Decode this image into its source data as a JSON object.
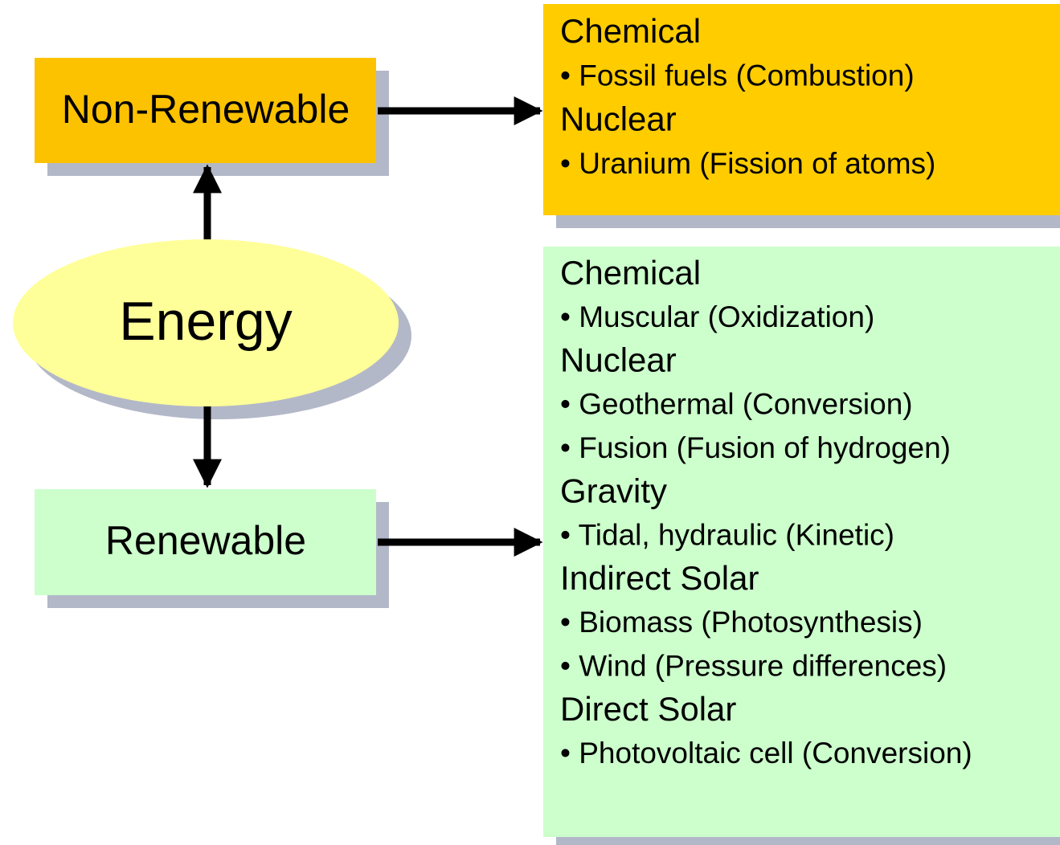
{
  "center": {
    "label": "Energy"
  },
  "nodes": [
    {
      "label": "Non-Renewable"
    },
    {
      "label": "Renewable"
    }
  ],
  "panels": [
    {
      "groups": [
        {
          "heading": "Chemical",
          "items": [
            "• Fossil fuels (Combustion)"
          ]
        },
        {
          "heading": "Nuclear",
          "items": [
            "• Uranium (Fission of atoms)"
          ]
        }
      ]
    },
    {
      "groups": [
        {
          "heading": "Chemical",
          "items": [
            "• Muscular (Oxidization)"
          ]
        },
        {
          "heading": "Nuclear",
          "items": [
            "• Geothermal (Conversion)",
            "• Fusion (Fusion of hydrogen)"
          ]
        },
        {
          "heading": "Gravity",
          "items": [
            "• Tidal, hydraulic (Kinetic)"
          ]
        },
        {
          "heading": "Indirect Solar",
          "items": [
            "• Biomass (Photosynthesis)",
            "• Wind (Pressure differences)"
          ]
        },
        {
          "heading": "Direct Solar",
          "items": [
            "• Photovoltaic cell (Conversion)"
          ]
        }
      ]
    }
  ]
}
